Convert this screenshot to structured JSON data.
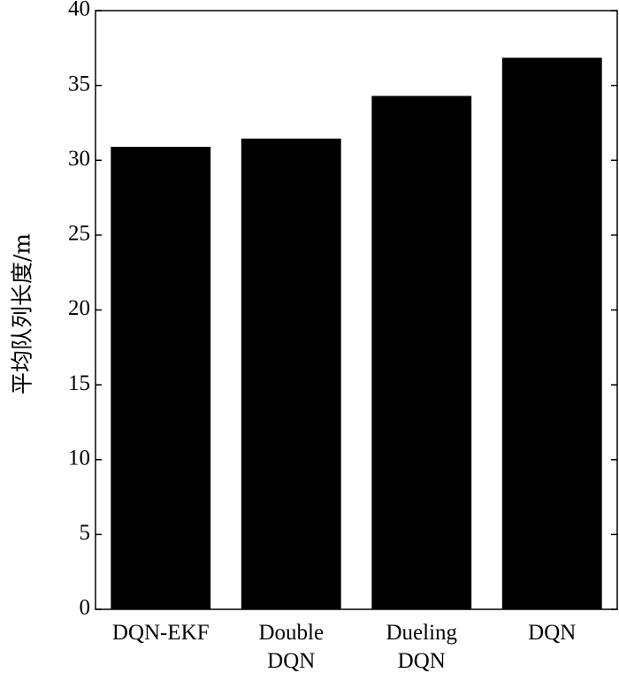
{
  "chart_data": {
    "type": "bar",
    "categories": [
      [
        "DQN-EKF"
      ],
      [
        "Double",
        "DQN"
      ],
      [
        "Dueling",
        "DQN"
      ],
      [
        "DQN"
      ]
    ],
    "values": [
      30.9,
      31.45,
      34.3,
      36.85
    ],
    "ylabel": "平均队列长度/m",
    "xlabel": "",
    "ylim": [
      0,
      40
    ],
    "yticks": [
      0,
      5,
      10,
      15,
      20,
      25,
      30,
      35,
      40
    ],
    "grid": false,
    "bar_color": "#000000"
  }
}
